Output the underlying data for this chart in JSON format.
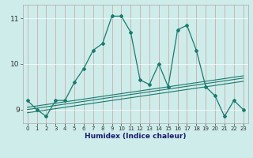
{
  "xlabel": "Humidex (Indice chaleur)",
  "bg_color": "#ceecea",
  "line_color": "#1a7a6e",
  "x_data": [
    0,
    1,
    2,
    3,
    4,
    5,
    6,
    7,
    8,
    9,
    10,
    11,
    12,
    13,
    14,
    15,
    16,
    17,
    18,
    19,
    20,
    21,
    22,
    23
  ],
  "main_line": [
    9.2,
    9.0,
    8.85,
    9.2,
    9.2,
    9.6,
    9.9,
    10.3,
    10.45,
    11.05,
    11.05,
    10.7,
    9.65,
    9.55,
    10.0,
    9.5,
    10.75,
    10.85,
    10.3,
    9.5,
    9.3,
    8.85,
    9.2,
    9.0
  ],
  "reg_line1": [
    9.05,
    9.08,
    9.11,
    9.14,
    9.17,
    9.2,
    9.23,
    9.26,
    9.29,
    9.32,
    9.35,
    9.38,
    9.41,
    9.44,
    9.47,
    9.5,
    9.53,
    9.56,
    9.59,
    9.62,
    9.65,
    9.68,
    9.71,
    9.74
  ],
  "reg_line2": [
    9.0,
    9.03,
    9.06,
    9.09,
    9.12,
    9.15,
    9.18,
    9.21,
    9.24,
    9.27,
    9.3,
    9.33,
    9.36,
    9.39,
    9.42,
    9.45,
    9.48,
    9.51,
    9.54,
    9.57,
    9.6,
    9.63,
    9.66,
    9.69
  ],
  "reg_line3": [
    8.93,
    8.96,
    8.99,
    9.02,
    9.05,
    9.08,
    9.11,
    9.14,
    9.17,
    9.2,
    9.23,
    9.26,
    9.29,
    9.32,
    9.35,
    9.38,
    9.41,
    9.44,
    9.47,
    9.5,
    9.53,
    9.56,
    9.59,
    9.62
  ],
  "ylim": [
    8.7,
    11.3
  ],
  "yticks": [
    9,
    10,
    11
  ],
  "xticks": [
    0,
    1,
    2,
    3,
    4,
    5,
    6,
    7,
    8,
    9,
    10,
    11,
    12,
    13,
    14,
    15,
    16,
    17,
    18,
    19,
    20,
    21,
    22,
    23
  ]
}
